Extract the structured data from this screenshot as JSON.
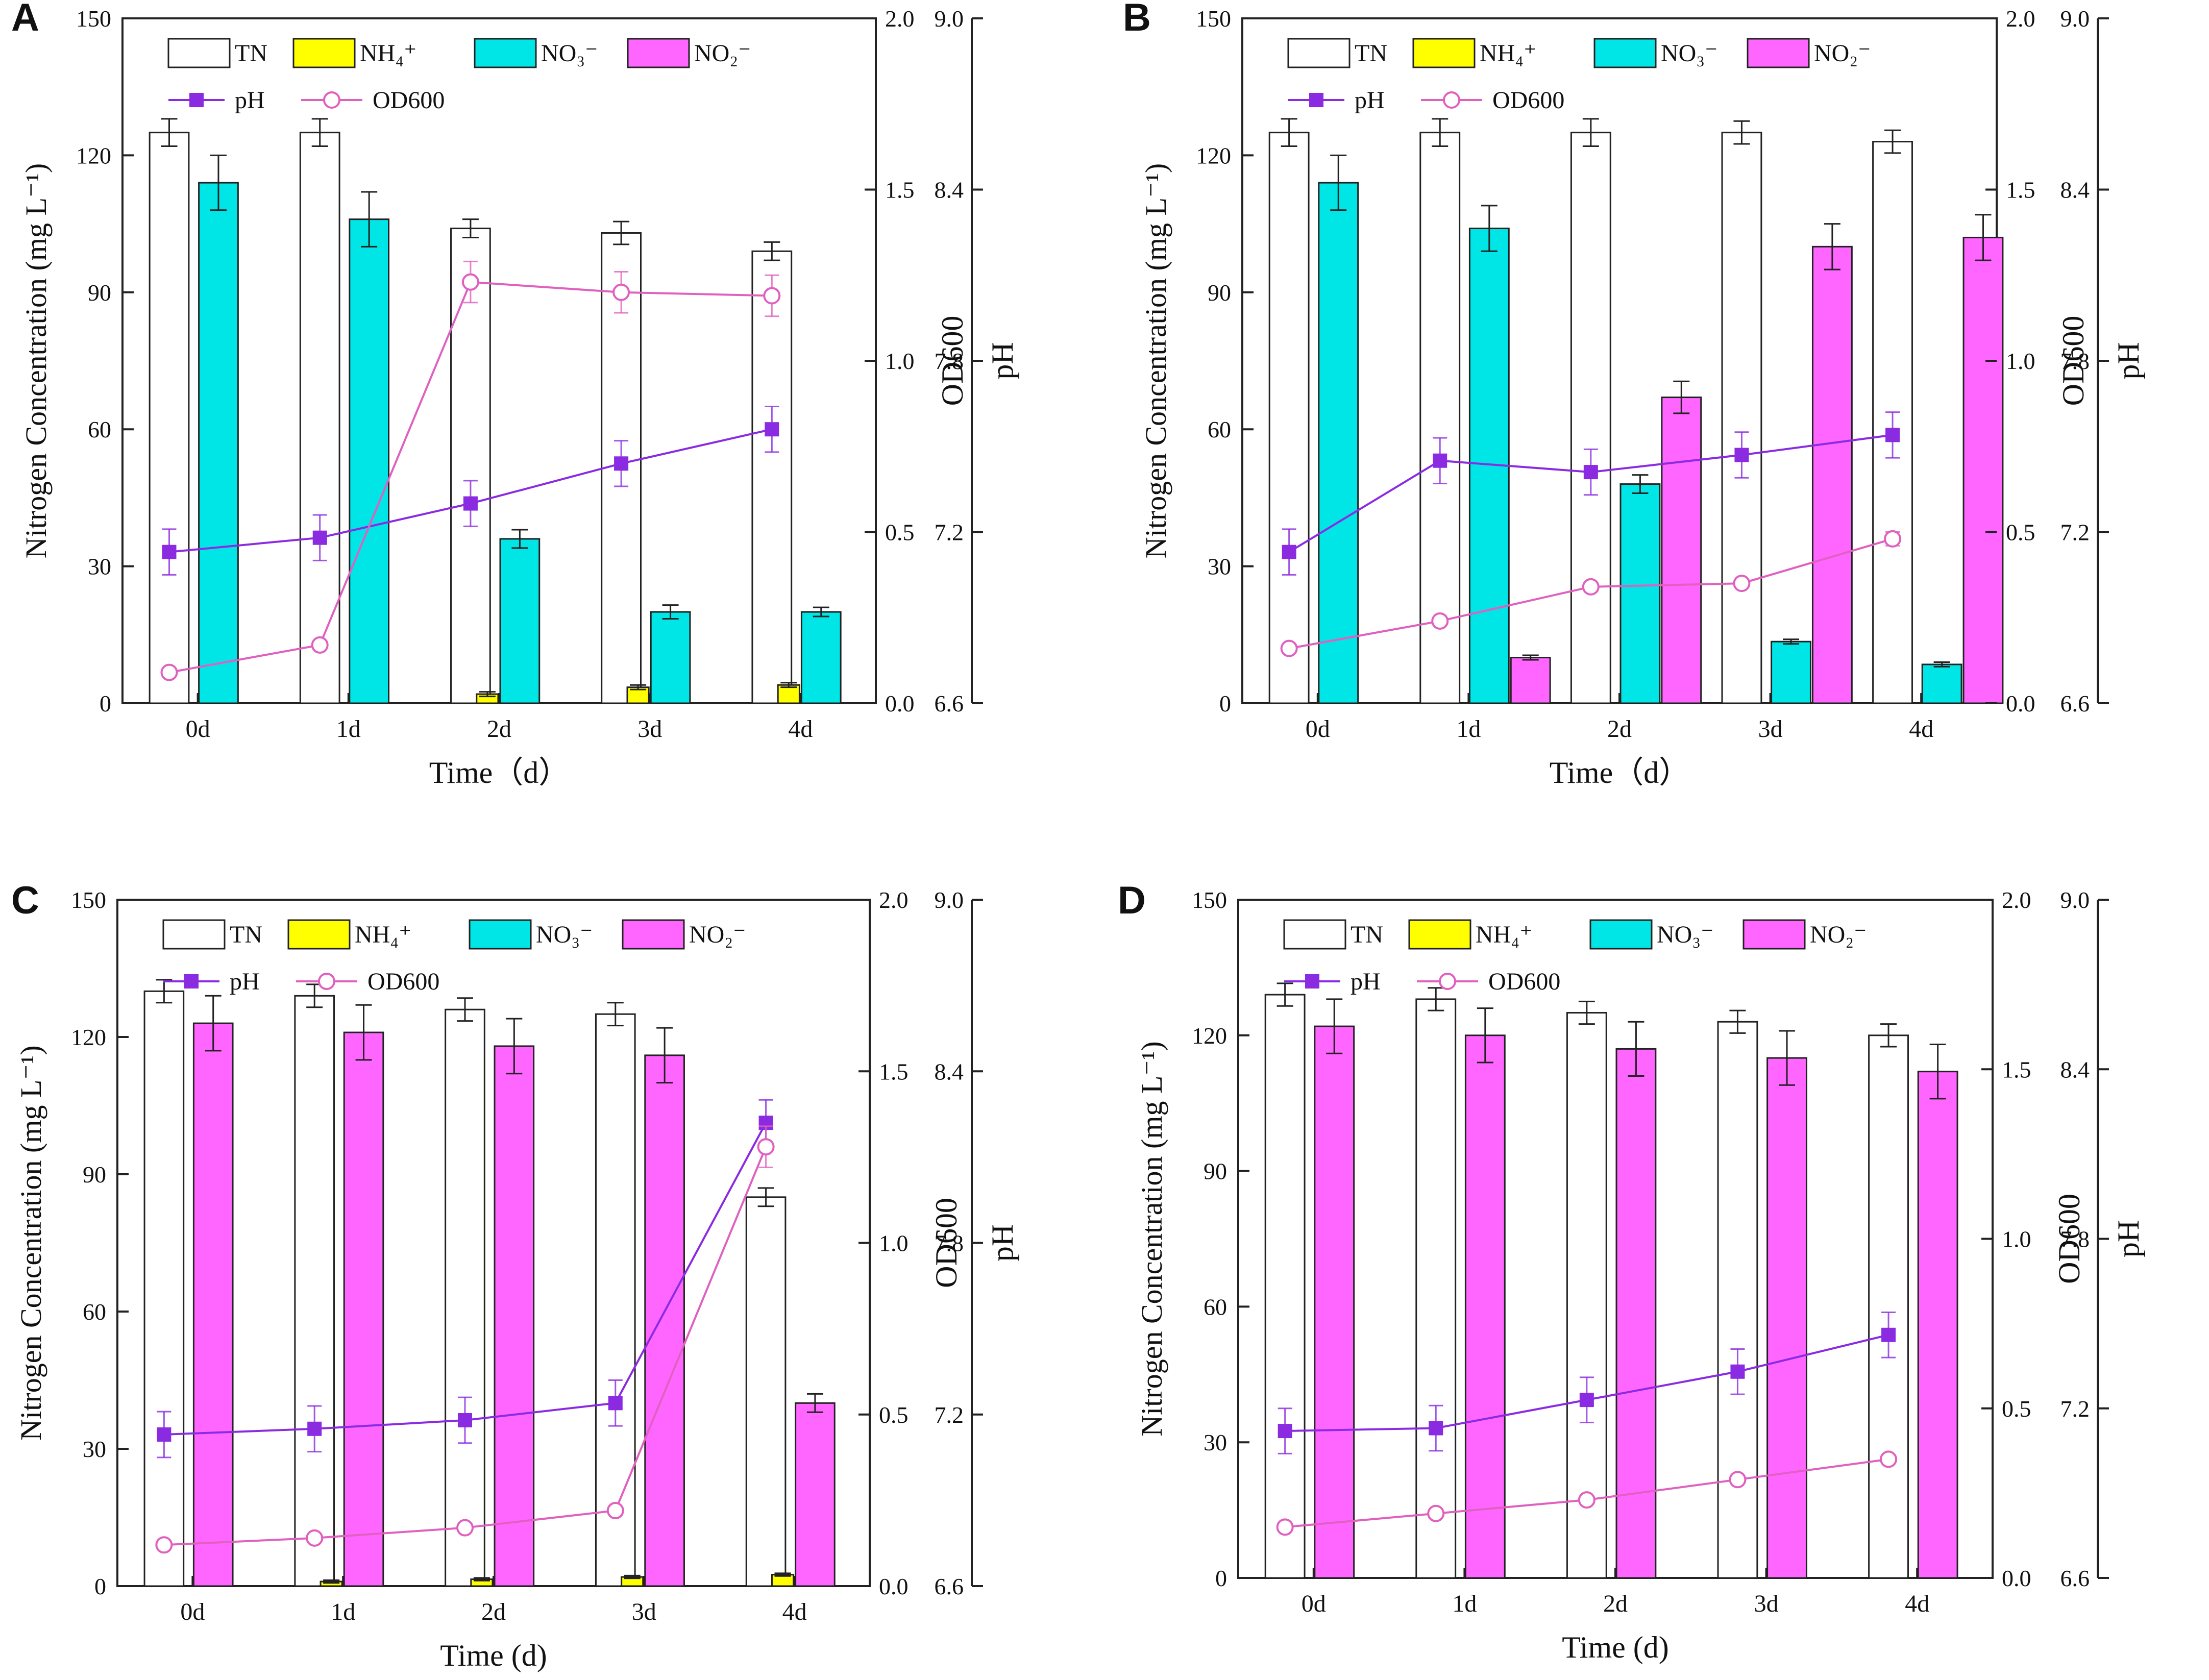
{
  "figure": {
    "labels": [
      "A",
      "B",
      "C",
      "D"
    ]
  },
  "chart_data": [
    {
      "panel": "A",
      "type": "bar",
      "categories": [
        "0d",
        "1d",
        "2d",
        "3d",
        "4d"
      ],
      "xlabel": "Time（d）",
      "ylabel": "Nitrogen Concentration (mg L⁻¹)",
      "y2label": "OD600",
      "y3label": "pH",
      "ylim": [
        0,
        150
      ],
      "y2lim": [
        0,
        2.0
      ],
      "y3lim": [
        6.6,
        9.0
      ],
      "yticks": [
        "0",
        "30",
        "60",
        "90",
        "120",
        "150"
      ],
      "y2ticks": [
        "0.0",
        "0.5",
        "1.0",
        "1.5",
        "2.0"
      ],
      "y3ticks": [
        "6.6",
        "7.2",
        "7.8",
        "8.4",
        "9.0"
      ],
      "legend": {
        "TN": "TN",
        "NH4": "NH₄⁺",
        "NO3": "NO₃⁻",
        "NO2": "NO₂⁻",
        "pH": "pH",
        "OD": "OD600"
      },
      "bar_series": [
        {
          "name": "TN",
          "color": "#ffffff",
          "values": [
            125,
            125,
            104,
            103,
            99
          ],
          "errors": [
            3,
            3,
            2,
            2.5,
            2
          ]
        },
        {
          "name": "NH4",
          "color": "#ffff00",
          "values": [
            0,
            0,
            2,
            3.5,
            4
          ],
          "errors": [
            0,
            0,
            0.5,
            0.5,
            0.5
          ]
        },
        {
          "name": "NO3",
          "color": "#00e5e5",
          "values": [
            114,
            106,
            36,
            20,
            20
          ],
          "errors": [
            6,
            6,
            2,
            1.5,
            1
          ]
        },
        {
          "name": "NO2",
          "color": "#ff66ff",
          "values": [
            0,
            0,
            0,
            0,
            0
          ],
          "errors": [
            0,
            0,
            0,
            0,
            0
          ]
        }
      ],
      "line_series": [
        {
          "name": "pH",
          "axis": "y3",
          "color": "#8a2be2",
          "values": [
            7.13,
            7.18,
            7.3,
            7.44,
            7.56
          ],
          "errors": [
            0.08,
            0.08,
            0.08,
            0.08,
            0.08
          ]
        },
        {
          "name": "OD600",
          "axis": "y2",
          "color": "#e060c0",
          "values": [
            0.09,
            0.17,
            1.23,
            1.2,
            1.19
          ],
          "errors": [
            0.01,
            0.01,
            0.06,
            0.06,
            0.06
          ]
        }
      ]
    },
    {
      "panel": "B",
      "type": "bar",
      "categories": [
        "0d",
        "1d",
        "2d",
        "3d",
        "4d"
      ],
      "xlabel": "Time（d）",
      "ylabel": "Nitrogen Concentration (mg L⁻¹)",
      "y2label": "OD600",
      "y3label": "pH",
      "ylim": [
        0,
        150
      ],
      "y2lim": [
        0,
        2.0
      ],
      "y3lim": [
        6.6,
        9.0
      ],
      "yticks": [
        "0",
        "30",
        "60",
        "90",
        "120",
        "150"
      ],
      "y2ticks": [
        "0.0",
        "0.5",
        "1.0",
        "1.5",
        "2.0"
      ],
      "y3ticks": [
        "6.6",
        "7.2",
        "7.8",
        "8.4",
        "9.0"
      ],
      "legend": {
        "TN": "TN",
        "NH4": "NH₄⁺",
        "NO3": "NO₃⁻",
        "NO2": "NO₂⁻",
        "pH": "pH",
        "OD": "OD600"
      },
      "bar_series": [
        {
          "name": "TN",
          "color": "#ffffff",
          "values": [
            125,
            125,
            125,
            125,
            123
          ],
          "errors": [
            3,
            3,
            3,
            2.5,
            2.5
          ]
        },
        {
          "name": "NH4",
          "color": "#ffff00",
          "values": [
            0,
            0,
            0,
            0,
            0
          ],
          "errors": [
            0,
            0,
            0,
            0,
            0
          ]
        },
        {
          "name": "NO3",
          "color": "#00e5e5",
          "values": [
            114,
            104,
            48,
            13.5,
            8.5
          ],
          "errors": [
            6,
            5,
            2,
            0.5,
            0.5
          ]
        },
        {
          "name": "NO2",
          "color": "#ff66ff",
          "values": [
            0,
            10,
            67,
            100,
            102
          ],
          "errors": [
            0,
            0.5,
            3.5,
            5,
            5
          ]
        }
      ],
      "line_series": [
        {
          "name": "pH",
          "axis": "y3",
          "color": "#8a2be2",
          "values": [
            7.13,
            7.45,
            7.41,
            7.47,
            7.54
          ],
          "errors": [
            0.08,
            0.08,
            0.08,
            0.08,
            0.08
          ]
        },
        {
          "name": "OD600",
          "axis": "y2",
          "color": "#e060c0",
          "values": [
            0.16,
            0.24,
            0.34,
            0.35,
            0.48
          ],
          "errors": [
            0.01,
            0.01,
            0.01,
            0.01,
            0.02
          ]
        }
      ]
    },
    {
      "panel": "C",
      "type": "bar",
      "categories": [
        "0d",
        "1d",
        "2d",
        "3d",
        "4d"
      ],
      "xlabel": "Time (d)",
      "ylabel": "Nitrogen Concentration (mg L⁻¹)",
      "y2label": "OD600",
      "y3label": "pH",
      "ylim": [
        0,
        150
      ],
      "y2lim": [
        0,
        2.0
      ],
      "y3lim": [
        6.6,
        9.0
      ],
      "yticks": [
        "0",
        "30",
        "60",
        "90",
        "120",
        "150"
      ],
      "y2ticks": [
        "0.0",
        "0.5",
        "1.0",
        "1.5",
        "2.0"
      ],
      "y3ticks": [
        "6.6",
        "7.2",
        "7.8",
        "8.4",
        "9.0"
      ],
      "legend": {
        "TN": "TN",
        "NH4": "NH₄⁺",
        "NO3": "NO₃⁻",
        "NO2": "NO₂⁻",
        "pH": "pH",
        "OD": "OD600"
      },
      "bar_series": [
        {
          "name": "TN",
          "color": "#ffffff",
          "values": [
            130,
            129,
            126,
            125,
            85
          ],
          "errors": [
            2.5,
            2.5,
            2.5,
            2.5,
            2
          ]
        },
        {
          "name": "NH4",
          "color": "#ffff00",
          "values": [
            0,
            1,
            1.5,
            2,
            2.5
          ],
          "errors": [
            0,
            0.3,
            0.3,
            0.3,
            0.3
          ]
        },
        {
          "name": "NO3",
          "color": "#00e5e5",
          "values": [
            0,
            0,
            0,
            0,
            0
          ],
          "errors": [
            0,
            0,
            0,
            0,
            0
          ]
        },
        {
          "name": "NO2",
          "color": "#ff66ff",
          "values": [
            123,
            121,
            118,
            116,
            40
          ],
          "errors": [
            6,
            6,
            6,
            6,
            2
          ]
        }
      ],
      "line_series": [
        {
          "name": "pH",
          "axis": "y3",
          "color": "#8a2be2",
          "values": [
            7.13,
            7.15,
            7.18,
            7.24,
            8.22
          ],
          "errors": [
            0.08,
            0.08,
            0.08,
            0.08,
            0.08
          ]
        },
        {
          "name": "OD600",
          "axis": "y2",
          "color": "#e060c0",
          "values": [
            0.12,
            0.14,
            0.17,
            0.22,
            1.28
          ],
          "errors": [
            0.01,
            0.01,
            0.01,
            0.01,
            0.06
          ]
        }
      ]
    },
    {
      "panel": "D",
      "type": "bar",
      "categories": [
        "0d",
        "1d",
        "2d",
        "3d",
        "4d"
      ],
      "xlabel": "Time (d)",
      "ylabel": "Nitrogen Concentration (mg L⁻¹)",
      "y2label": "OD600",
      "y3label": "pH",
      "ylim": [
        0,
        150
      ],
      "y2lim": [
        0,
        2.0
      ],
      "y3lim": [
        6.6,
        9.0
      ],
      "yticks": [
        "0",
        "30",
        "60",
        "90",
        "120",
        "150"
      ],
      "y2ticks": [
        "0.0",
        "0.5",
        "1.0",
        "1.5",
        "2.0"
      ],
      "y3ticks": [
        "6.6",
        "7.2",
        "7.8",
        "8.4",
        "9.0"
      ],
      "legend": {
        "TN": "TN",
        "NH4": "NH₄⁺",
        "NO3": "NO₃⁻",
        "NO2": "NO₂⁻",
        "pH": "pH",
        "OD": "OD600"
      },
      "bar_series": [
        {
          "name": "TN",
          "color": "#ffffff",
          "values": [
            129,
            128,
            125,
            123,
            120
          ],
          "errors": [
            2.5,
            2.5,
            2.5,
            2.5,
            2.5
          ]
        },
        {
          "name": "NH4",
          "color": "#ffff00",
          "values": [
            0,
            0,
            0,
            0,
            0
          ],
          "errors": [
            0,
            0,
            0,
            0,
            0
          ]
        },
        {
          "name": "NO3",
          "color": "#00e5e5",
          "values": [
            0,
            0,
            0,
            0,
            0
          ],
          "errors": [
            0,
            0,
            0,
            0,
            0
          ]
        },
        {
          "name": "NO2",
          "color": "#ff66ff",
          "values": [
            122,
            120,
            117,
            115,
            112
          ],
          "errors": [
            6,
            6,
            6,
            6,
            6
          ]
        }
      ],
      "line_series": [
        {
          "name": "pH",
          "axis": "y3",
          "color": "#8a2be2",
          "values": [
            7.12,
            7.13,
            7.23,
            7.33,
            7.46
          ],
          "errors": [
            0.08,
            0.08,
            0.08,
            0.08,
            0.08
          ]
        },
        {
          "name": "OD600",
          "axis": "y2",
          "color": "#e060c0",
          "values": [
            0.15,
            0.19,
            0.23,
            0.29,
            0.35
          ],
          "errors": [
            0.01,
            0.01,
            0.01,
            0.01,
            0.01
          ]
        }
      ]
    }
  ]
}
